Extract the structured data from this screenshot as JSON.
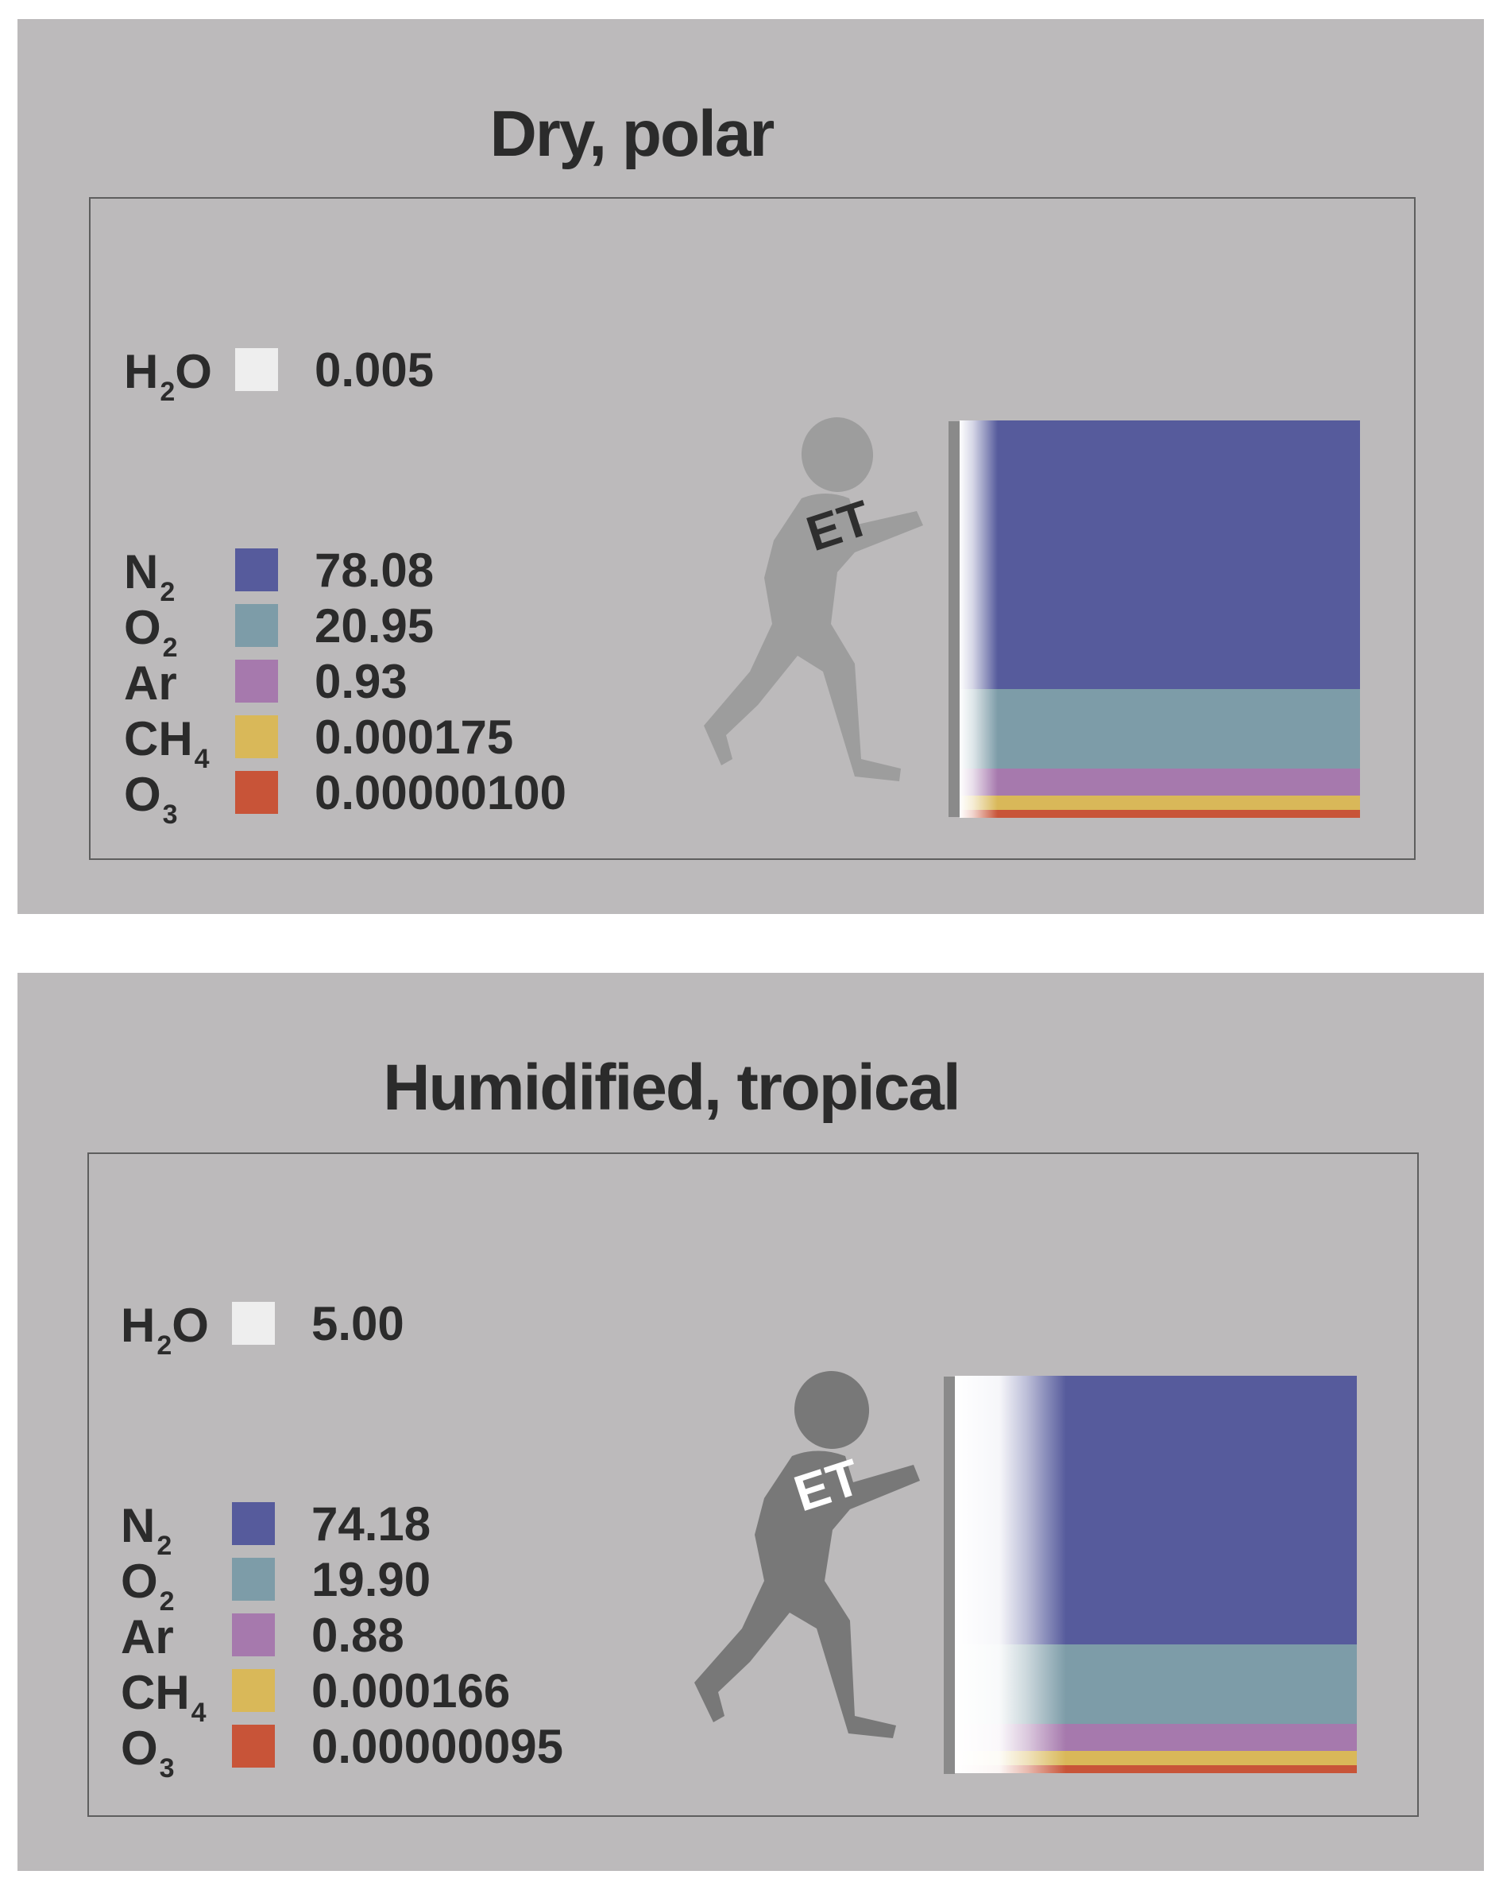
{
  "panels": [
    {
      "title": "Dry, polar",
      "h2o": {
        "base": "H",
        "sub": "2",
        "suffix": "O",
        "value": "0.005",
        "color": "#eeeeee"
      },
      "gases": [
        {
          "base": "N",
          "sub": "2",
          "value": "78.08",
          "color": "#565b9c"
        },
        {
          "base": "O",
          "sub": "2",
          "value": "20.95",
          "color": "#7d9ca8"
        },
        {
          "base": "Ar",
          "sub": "",
          "value": "0.93",
          "color": "#a679ad"
        },
        {
          "base": "CH",
          "sub": "4",
          "value": "0.000175",
          "color": "#d9b859"
        },
        {
          "base": "O",
          "sub": "3",
          "value": "0.00000100",
          "color": "#c85438"
        }
      ],
      "figure_label": "ET",
      "figure_color": "#9d9d9d",
      "label_color": "#2e2e2e"
    },
    {
      "title": "Humidified, tropical",
      "h2o": {
        "base": "H",
        "sub": "2",
        "suffix": "O",
        "value": "5.00",
        "color": "#eeeeee"
      },
      "gases": [
        {
          "base": "N",
          "sub": "2",
          "value": "74.18",
          "color": "#565b9c"
        },
        {
          "base": "O",
          "sub": "2",
          "value": "19.90",
          "color": "#7d9ca8"
        },
        {
          "base": "Ar",
          "sub": "",
          "value": "0.88",
          "color": "#a679ad"
        },
        {
          "base": "CH",
          "sub": "4",
          "value": "0.000166",
          "color": "#d9b859"
        },
        {
          "base": "O",
          "sub": "3",
          "value": "0.00000095",
          "color": "#c85438"
        }
      ],
      "figure_label": "ET",
      "figure_color": "#787878",
      "label_color": "#ffffff"
    }
  ]
}
